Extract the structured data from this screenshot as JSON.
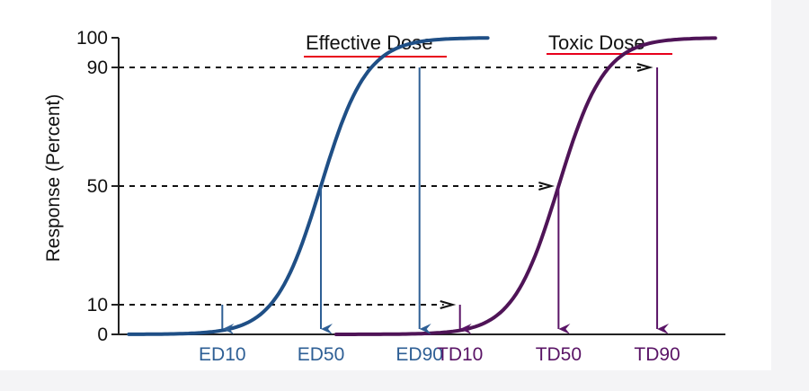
{
  "chart_data": {
    "type": "line",
    "ylabel": "Response (Percent)",
    "yticks": [
      0,
      10,
      50,
      90,
      100
    ],
    "ylim": [
      0,
      100
    ],
    "grid": false,
    "series": [
      {
        "name": "Effective Dose",
        "color": "#1f4f86",
        "x_start": 0.2,
        "x_mid": 4.0,
        "steepness": 1.1,
        "x_end": 7.3,
        "markers": [
          {
            "label": "ED10",
            "x": 2.05,
            "y": 10
          },
          {
            "label": "ED50",
            "x": 4.0,
            "y": 50
          },
          {
            "label": "ED90",
            "x": 5.95,
            "y": 90
          }
        ]
      },
      {
        "name": "Toxic Dose",
        "color": "#4f1457",
        "x_start": 4.3,
        "x_mid": 8.7,
        "steepness": 1.1,
        "x_end": 11.8,
        "markers": [
          {
            "label": "TD10",
            "x": 6.75,
            "y": 10
          },
          {
            "label": "TD50",
            "x": 8.7,
            "y": 50
          },
          {
            "label": "TD90",
            "x": 10.65,
            "y": 90
          }
        ]
      }
    ],
    "legend": [
      {
        "label": "Effective Dose",
        "underline_color": "#e8001c"
      },
      {
        "label": "Toxic Dose",
        "underline_color": "#e8001c"
      }
    ],
    "dose_label_colors": {
      "ED": "#2e5f95",
      "TD": "#5a1466"
    }
  }
}
